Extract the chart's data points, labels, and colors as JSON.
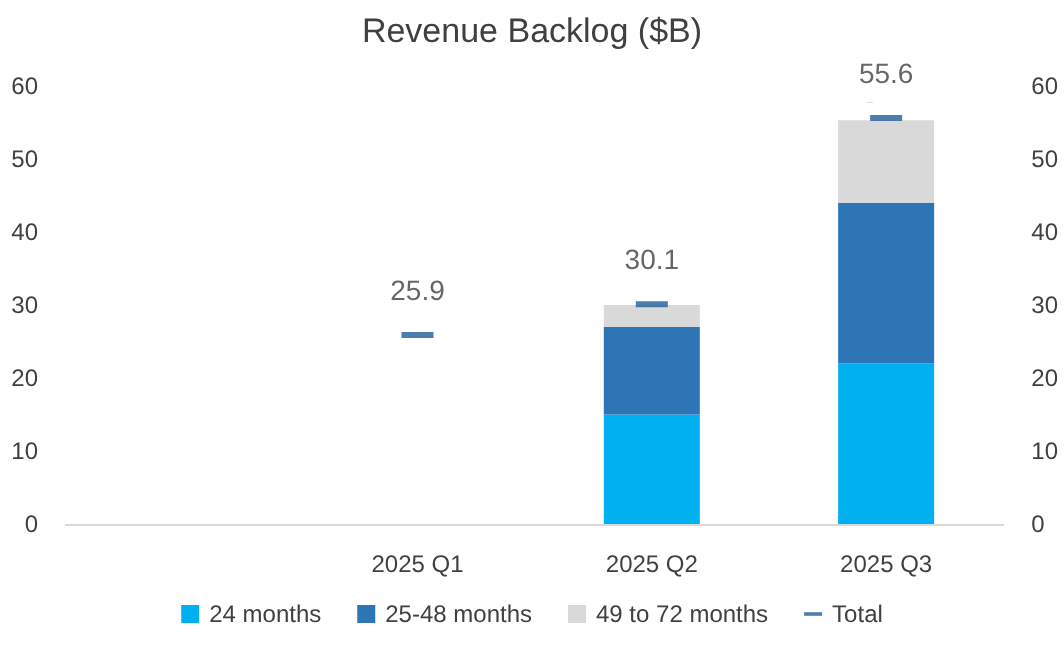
{
  "chart_data": {
    "type": "bar",
    "title": "Revenue Backlog ($B)",
    "categories": [
      null,
      "2025 Q1",
      "2025 Q2",
      "2025 Q3"
    ],
    "stacked": true,
    "series": [
      {
        "name": "24 months",
        "color": "#00b0f0",
        "values": [
          null,
          null,
          15,
          22
        ]
      },
      {
        "name": "25-48 months",
        "color": "#2e75b6",
        "values": [
          null,
          null,
          12,
          22
        ]
      },
      {
        "name": "49 to 72 months",
        "color": "#d9d9d9",
        "values": [
          null,
          null,
          3,
          11.3
        ]
      },
      {
        "name": "Total",
        "type": "scatter",
        "color": "#1f5c99",
        "values": [
          null,
          25.9,
          30.1,
          55.6
        ],
        "value_labels": [
          null,
          "25.9",
          "30.1",
          "55.6"
        ]
      }
    ],
    "ylim": [
      0,
      60
    ],
    "yticks": [
      0,
      10,
      20,
      30,
      40,
      50,
      60
    ],
    "y2lim": [
      0,
      60
    ],
    "y2ticks": [
      0,
      10,
      20,
      30,
      40,
      50,
      60
    ],
    "grid": false,
    "legend": "bottom"
  }
}
